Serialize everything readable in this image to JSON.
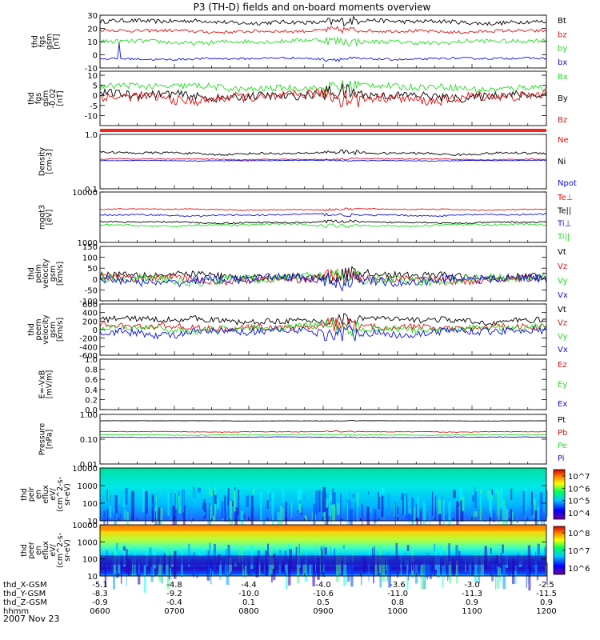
{
  "title": "P3 (TH-D) fields and on-board moments overview",
  "colors": {
    "black": "#000000",
    "red": "#e01010",
    "green": "#22dd22",
    "blue": "#1010e0",
    "bar": "#ff2020"
  },
  "chart_data": [
    {
      "id": "fgs_gsm",
      "type": "line",
      "ylabel": [
        "thd",
        "fgs",
        "gsm",
        "[nT]"
      ],
      "ylim": [
        -10,
        30
      ],
      "ticks": [
        "30",
        "20",
        "10",
        "0",
        "-10"
      ],
      "tick_values": [
        30,
        20,
        10,
        0,
        -10
      ],
      "series": [
        {
          "name": "Bt",
          "color": "black",
          "level": 25,
          "noise": 2,
          "spike": false
        },
        {
          "name": "bz",
          "color": "red",
          "level": 18,
          "noise": 1.5,
          "spike": false
        },
        {
          "name": "by",
          "color": "green",
          "level": 10,
          "noise": 2,
          "spike": false
        },
        {
          "name": "bx",
          "color": "blue",
          "level": -3,
          "noise": 1,
          "spike": true
        }
      ]
    },
    {
      "id": "fgs_gsm2",
      "type": "line",
      "ylabel": [
        "thd",
        "fgs",
        "gsm",
        "-0.02",
        "[nT]"
      ],
      "ylim": [
        -15,
        12
      ],
      "ticks": [
        "10",
        "5",
        "0",
        "-5",
        "-10"
      ],
      "tick_values": [
        10,
        5,
        0,
        -5,
        -10
      ],
      "series": [
        {
          "name": "Bx",
          "color": "green",
          "level": 4,
          "noise": 2,
          "spike": false
        },
        {
          "name": "By",
          "color": "black",
          "level": 0,
          "noise": 2.5,
          "spike": false
        },
        {
          "name": "Bz",
          "color": "red",
          "level": -1,
          "noise": 3,
          "spike": false
        }
      ]
    },
    {
      "id": "density",
      "type": "line",
      "ylabel": [
        "Density",
        "[cm-3]"
      ],
      "ylim": [
        0.1,
        1.0
      ],
      "log": true,
      "ticks": [
        "1.0",
        "0.1"
      ],
      "tick_values": [
        1.0,
        0.1
      ],
      "series": [
        {
          "name": "Ne",
          "color": "red",
          "level": 0.35,
          "noise": 0.05
        },
        {
          "name": "Ni",
          "color": "black",
          "level": 0.45,
          "noise": 0.15
        },
        {
          "name": "Npot",
          "color": "blue",
          "level": 0.33,
          "noise": 0.03
        }
      ]
    },
    {
      "id": "temp",
      "type": "line",
      "ylabel": [
        "mgqt3",
        "[eV]"
      ],
      "ylim": [
        1000,
        10000
      ],
      "log": true,
      "ticks": [
        "10000",
        "1000"
      ],
      "tick_values": [
        10000,
        1000
      ],
      "series": [
        {
          "name": "Te⊥",
          "color": "red",
          "level": 4500,
          "noise": 800
        },
        {
          "name": "Te||",
          "color": "black",
          "level": 2500,
          "noise": 600
        },
        {
          "name": "Ti⊥",
          "color": "blue",
          "level": 3500,
          "noise": 900
        },
        {
          "name": "Ti||",
          "color": "green",
          "level": 2200,
          "noise": 700
        }
      ]
    },
    {
      "id": "peim_vel",
      "type": "line",
      "ylabel": [
        "thd",
        "peim",
        "velocity",
        "gsm",
        "[km/s]"
      ],
      "ylim": [
        -100,
        150
      ],
      "ticks": [
        "150",
        "100",
        "50",
        "0",
        "-50",
        "-100"
      ],
      "tick_values": [
        150,
        100,
        50,
        0,
        -50,
        -100
      ],
      "series": [
        {
          "name": "Vt",
          "color": "black",
          "level": 15,
          "noise": 20
        },
        {
          "name": "Vz",
          "color": "red",
          "level": 0,
          "noise": 20
        },
        {
          "name": "Vy",
          "color": "green",
          "level": 0,
          "noise": 25
        },
        {
          "name": "Vx",
          "color": "blue",
          "level": -5,
          "noise": 25
        }
      ]
    },
    {
      "id": "peem_vel",
      "type": "line",
      "ylabel": [
        "thd",
        "peem",
        "velocity",
        "gsm",
        "[km/s]"
      ],
      "ylim": [
        -600,
        600
      ],
      "ticks": [
        "600",
        "400",
        "200",
        "0",
        "-200",
        "-400",
        "-600"
      ],
      "tick_values": [
        600,
        400,
        200,
        0,
        -200,
        -400,
        -600
      ],
      "series": [
        {
          "name": "Vt",
          "color": "black",
          "level": 220,
          "noise": 90
        },
        {
          "name": "Vz",
          "color": "red",
          "level": 60,
          "noise": 90
        },
        {
          "name": "Vy",
          "color": "green",
          "level": 30,
          "noise": 100
        },
        {
          "name": "Vx",
          "color": "blue",
          "level": -60,
          "noise": 110
        }
      ]
    },
    {
      "id": "exb",
      "type": "line",
      "ylabel": [
        "E=-VxB",
        "[mV/m]"
      ],
      "ylim": [
        0,
        1.0
      ],
      "ticks": [
        "1.0",
        "0.8",
        "0.6",
        "0.4",
        "0.2",
        "0.0"
      ],
      "tick_values": [
        1.0,
        0.8,
        0.6,
        0.4,
        0.2,
        0.0
      ],
      "series": [
        {
          "name": "Ez",
          "color": "red",
          "empty": true
        },
        {
          "name": "Ey",
          "color": "green",
          "empty": true
        },
        {
          "name": "Ex",
          "color": "blue",
          "empty": true
        }
      ]
    },
    {
      "id": "pressure",
      "type": "line",
      "ylabel": [
        "Pressure",
        "[nPa]"
      ],
      "ylim": [
        0.01,
        1.0
      ],
      "log": true,
      "ticks": [
        "1.00",
        "0.10",
        "0.01"
      ],
      "tick_values": [
        1.0,
        0.1,
        0.01
      ],
      "series": [
        {
          "name": "Pt",
          "color": "black",
          "level": 0.55,
          "noise": 0.05
        },
        {
          "name": "Pb",
          "color": "red",
          "level": 0.2,
          "noise": 0.04
        },
        {
          "name": "Pe",
          "color": "green",
          "level": 0.15,
          "noise": 0.03
        },
        {
          "name": "Pi",
          "color": "blue",
          "level": 0.12,
          "noise": 0.02
        }
      ]
    },
    {
      "id": "peir_en",
      "type": "heatmap",
      "ylabel": [
        "thd",
        "peir",
        "en",
        "eflux",
        "eV/",
        "(cm^2-s-",
        "sr-eV)"
      ],
      "ylim": [
        10,
        10000
      ],
      "log": true,
      "ticks": [
        "10000",
        "1000",
        "100",
        "10"
      ],
      "tick_values": [
        10000,
        1000,
        100,
        10
      ],
      "colorbar_ticks": [
        "10^7",
        "10^6",
        "10^5",
        "10^4"
      ]
    },
    {
      "id": "peer_en",
      "type": "heatmap",
      "ylabel": [
        "thd",
        "peer",
        "en",
        "eflux",
        "eV/",
        "(cm^2-s-",
        "sr-eV)"
      ],
      "ylim": [
        10,
        10000
      ],
      "log": true,
      "ticks": [
        "10000",
        "1000",
        "100",
        "10"
      ],
      "tick_values": [
        10000,
        1000,
        100,
        10
      ],
      "colorbar_ticks": [
        "10^8",
        "10^7",
        "10^6"
      ]
    }
  ],
  "x_axis": {
    "rows": [
      {
        "label": "thd_X-GSM",
        "values": [
          "-5.1",
          "-4.8",
          "-4.4",
          "-4.0",
          "-3.6",
          "-3.0",
          "-2.5"
        ]
      },
      {
        "label": "thd_Y-GSM",
        "values": [
          "-8.3",
          "-9.2",
          "-10.0",
          "-10.6",
          "-11.0",
          "-11.3",
          "-11.5"
        ]
      },
      {
        "label": "thd_Z-GSM",
        "values": [
          "-0.9",
          "-0.4",
          "0.1",
          "0.5",
          "0.8",
          "0.9",
          "0.9"
        ]
      },
      {
        "label": "hhmm",
        "values": [
          "0600",
          "0700",
          "0800",
          "0900",
          "1000",
          "1100",
          "1200"
        ]
      }
    ],
    "date": "2007 Nov 23"
  }
}
